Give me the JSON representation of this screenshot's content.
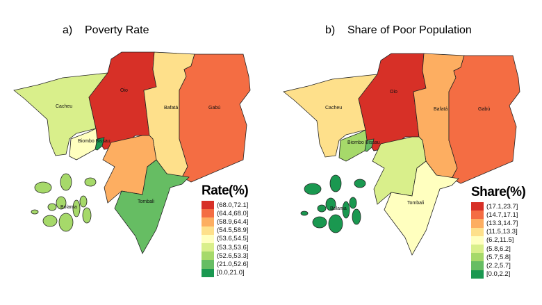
{
  "panels": [
    {
      "title": "a)    Poverty Rate",
      "legend_title": "Rate(%)",
      "legend": [
        {
          "label": "(68.0,72.1]",
          "color": "#d73027"
        },
        {
          "label": "(64.4,68.0]",
          "color": "#f46d43"
        },
        {
          "label": "(58.9,64.4]",
          "color": "#fdae61"
        },
        {
          "label": "(54.5,58.9]",
          "color": "#fee08b"
        },
        {
          "label": "(53.6,54.5]",
          "color": "#ffffbf"
        },
        {
          "label": "(53.3,53.6]",
          "color": "#d9ef8b"
        },
        {
          "label": "(52.6,53.3]",
          "color": "#a6d96a"
        },
        {
          "label": "(21.0,52.6]",
          "color": "#66bd63"
        },
        {
          "label": "[0.0,21.0]",
          "color": "#1a9850"
        }
      ],
      "regions": {
        "cacheu": "#d9ef8b",
        "oio": "#d73027",
        "bafata": "#fee08b",
        "gabu": "#f46d43",
        "quinara": "#fdae61",
        "tombali": "#66bd63",
        "biombo": "#ffffbf",
        "bissau": "#1a9850",
        "bolama": "#a6d96a"
      }
    },
    {
      "title": "b)    Share of Poor Population",
      "legend_title": "Share(%)",
      "legend": [
        {
          "label": "(17.1,23.7]",
          "color": "#d73027"
        },
        {
          "label": "(14.7,17.1]",
          "color": "#f46d43"
        },
        {
          "label": "(13.3,14.7]",
          "color": "#fdae61"
        },
        {
          "label": "(11.5,13.3]",
          "color": "#fee08b"
        },
        {
          "label": "(6.2,11.5]",
          "color": "#ffffbf"
        },
        {
          "label": "(5.8,6.2]",
          "color": "#d9ef8b"
        },
        {
          "label": "(5.7,5.8]",
          "color": "#a6d96a"
        },
        {
          "label": "(2.2,5.7]",
          "color": "#66bd63"
        },
        {
          "label": "[0.0,2.2]",
          "color": "#1a9850"
        }
      ],
      "regions": {
        "cacheu": "#fee08b",
        "oio": "#d73027",
        "bafata": "#fdae61",
        "gabu": "#f46d43",
        "quinara": "#d9ef8b",
        "tombali": "#ffffbf",
        "biombo": "#a6d96a",
        "bissau": "#66bd63",
        "bolama": "#1a9850"
      }
    }
  ],
  "region_labels": {
    "cacheu": "Cacheu",
    "oio": "Oio",
    "bafata": "Bafatá",
    "gabu": "Gabú",
    "biombo": "Biombo Bissau",
    "bolama": "Bolama",
    "tombali": "Tombali"
  }
}
